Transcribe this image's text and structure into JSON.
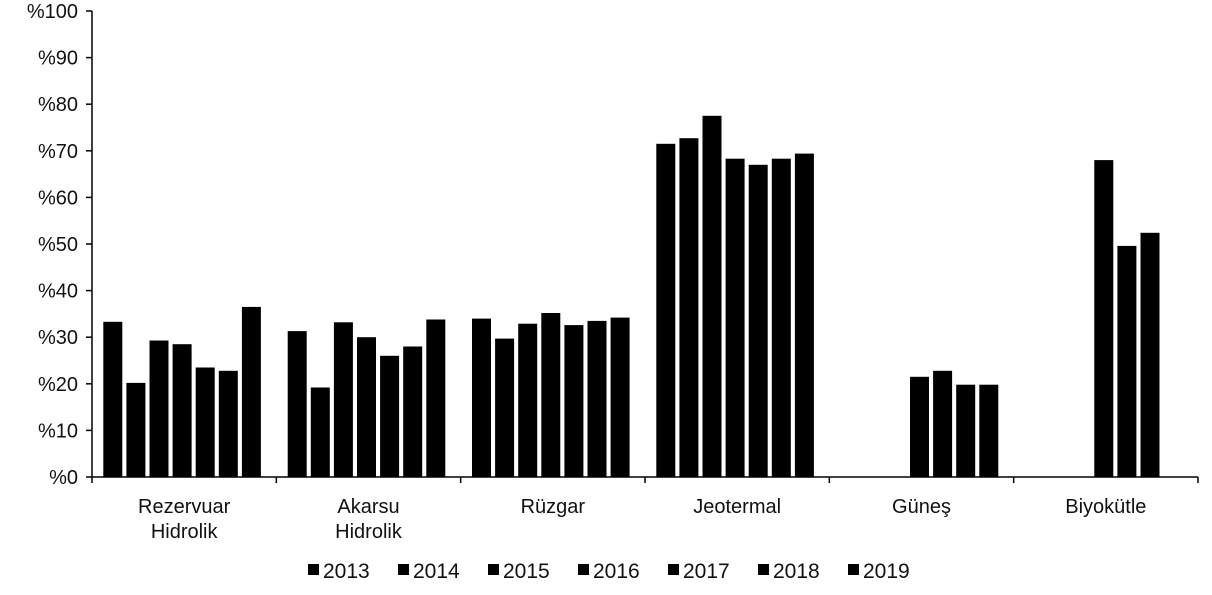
{
  "chart_data": {
    "type": "bar",
    "categories": [
      [
        "Rezervuar",
        "Hidrolik"
      ],
      [
        "Akarsu",
        "Hidrolik"
      ],
      [
        "Rüzgar"
      ],
      [
        "Jeotermal"
      ],
      [
        "Güneş"
      ],
      [
        "Biyokütle"
      ]
    ],
    "y_tick_labels": [
      "%0",
      "%10",
      "%20",
      "%30",
      "%40",
      "%50",
      "%60",
      "%70",
      "%80",
      "%90",
      "%100"
    ],
    "ylim": [
      0,
      100
    ],
    "grid": false,
    "legend_position": "bottom",
    "bar_color": "#000000",
    "series": [
      {
        "name": "2013",
        "values": [
          33.3,
          31.3,
          34.0,
          71.5,
          null,
          null
        ]
      },
      {
        "name": "2014",
        "values": [
          20.2,
          19.2,
          29.7,
          72.7,
          null,
          null
        ]
      },
      {
        "name": "2015",
        "values": [
          29.3,
          33.2,
          32.9,
          77.5,
          null,
          null
        ]
      },
      {
        "name": "2016",
        "values": [
          28.5,
          30.0,
          35.2,
          68.3,
          21.5,
          68.0
        ]
      },
      {
        "name": "2017",
        "values": [
          23.5,
          26.0,
          32.6,
          67.0,
          22.8,
          49.6
        ]
      },
      {
        "name": "2018",
        "values": [
          22.8,
          28.0,
          33.5,
          68.3,
          19.8,
          52.4
        ]
      },
      {
        "name": "2019",
        "values": [
          36.5,
          33.8,
          34.2,
          69.4,
          19.8,
          null
        ]
      }
    ]
  }
}
